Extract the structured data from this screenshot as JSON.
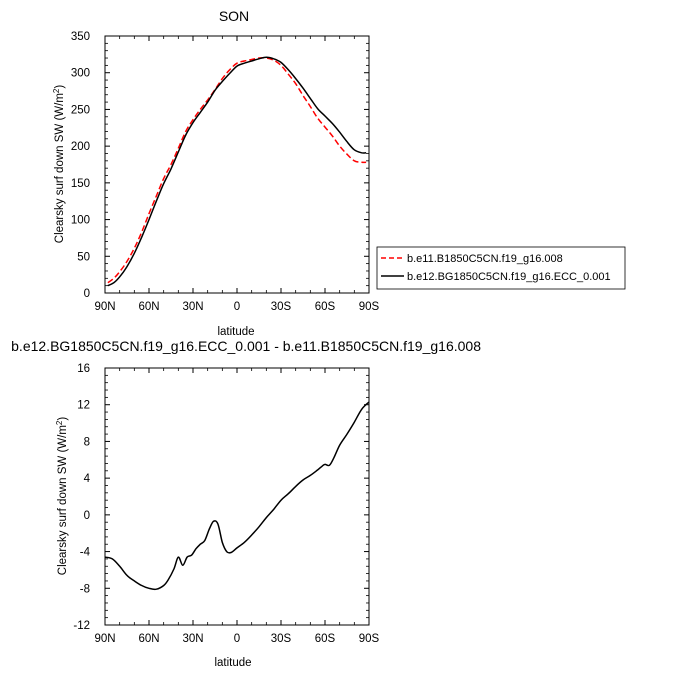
{
  "chart_data": [
    {
      "type": "line",
      "title": "SON",
      "xlabel": "latitude",
      "ylabel": "Clearsky surf down SW (W/m",
      "ylabel_sup": "2",
      "ylabel_tail": ")",
      "xlim": [
        90,
        -90
      ],
      "ylim": [
        0,
        350
      ],
      "xticks": [
        90,
        60,
        30,
        0,
        -30,
        -60,
        -90
      ],
      "xtick_labels": [
        "90N",
        "60N",
        "30N",
        "0",
        "30S",
        "60S",
        "90S"
      ],
      "yticks": [
        0,
        50,
        100,
        150,
        200,
        250,
        300,
        350
      ],
      "ytick_labels": [
        "0",
        "50",
        "100",
        "150",
        "200",
        "250",
        "300",
        "350"
      ],
      "legend_position": "right",
      "series": [
        {
          "name": "b.e11.B1850C5CN.f19_g16.008",
          "color": "#ff0000",
          "dash": "dashed",
          "x": [
            88,
            84,
            80,
            75,
            70,
            65,
            60,
            55,
            50,
            45,
            40,
            35,
            30,
            25,
            20,
            15,
            10,
            5,
            0,
            -5,
            -10,
            -15,
            -20,
            -25,
            -30,
            -35,
            -40,
            -45,
            -50,
            -55,
            -60,
            -65,
            -70,
            -75,
            -80,
            -85,
            -88
          ],
          "y": [
            14,
            20,
            29,
            43,
            61,
            83,
            108,
            132,
            156,
            175,
            197,
            220,
            236,
            250,
            263,
            277,
            292,
            304,
            313,
            316,
            318,
            320,
            320,
            317,
            310,
            298,
            285,
            269,
            254,
            238,
            226,
            214,
            200,
            189,
            180,
            178,
            178
          ]
        },
        {
          "name": "b.e12.BG1850C5CN.f19_g16.ECC_0.001",
          "color": "#000000",
          "dash": "solid",
          "x": [
            88,
            84,
            80,
            75,
            70,
            65,
            60,
            55,
            50,
            45,
            40,
            35,
            30,
            25,
            20,
            15,
            10,
            5,
            0,
            -5,
            -10,
            -15,
            -20,
            -25,
            -30,
            -35,
            -40,
            -45,
            -50,
            -55,
            -60,
            -65,
            -70,
            -75,
            -80,
            -85,
            -88
          ],
          "y": [
            10,
            14,
            22,
            36,
            54,
            76,
            100,
            125,
            149,
            169,
            192,
            215,
            232,
            246,
            260,
            276,
            288,
            299,
            309,
            313,
            316,
            319,
            321,
            319,
            314,
            304,
            292,
            279,
            265,
            251,
            241,
            231,
            219,
            206,
            195,
            191,
            191
          ]
        }
      ]
    },
    {
      "type": "line",
      "title": "b.e12.BG1850C5CN.f19_g16.ECC_0.001 - b.e11.B1850C5CN.f19_g16.008",
      "xlabel": "latitude",
      "ylabel": "Clearsky surf down SW (W/m",
      "ylabel_sup": "2",
      "ylabel_tail": ")",
      "xlim": [
        90,
        -90
      ],
      "ylim": [
        -12,
        16
      ],
      "xticks": [
        90,
        60,
        30,
        0,
        -30,
        -60,
        -90
      ],
      "xtick_labels": [
        "90N",
        "60N",
        "30N",
        "0",
        "30S",
        "60S",
        "90S"
      ],
      "yticks": [
        -12,
        -8,
        -4,
        0,
        4,
        8,
        12,
        16
      ],
      "ytick_labels": [
        "-12",
        "-8",
        "-4",
        "0",
        "4",
        "8",
        "12",
        "16"
      ],
      "series": [
        {
          "color": "#000000",
          "dash": "solid",
          "x": [
            90,
            85,
            80,
            75,
            70,
            65,
            60,
            55,
            50,
            47,
            43,
            40,
            37,
            34,
            31,
            28,
            25,
            22,
            19,
            16,
            13,
            10,
            7,
            4,
            0,
            -5,
            -10,
            -15,
            -20,
            -25,
            -30,
            -35,
            -40,
            -45,
            -50,
            -55,
            -58,
            -60,
            -63,
            -66,
            -70,
            -75,
            -80,
            -85,
            -90
          ],
          "y": [
            -4.6,
            -4.8,
            -5.6,
            -6.6,
            -7.2,
            -7.7,
            -8.0,
            -8.1,
            -7.7,
            -7.1,
            -5.9,
            -4.6,
            -5.5,
            -4.6,
            -4.4,
            -3.7,
            -3.2,
            -2.8,
            -1.6,
            -0.7,
            -1.0,
            -3.0,
            -4.0,
            -4.1,
            -3.6,
            -3.0,
            -2.2,
            -1.3,
            -0.3,
            0.6,
            1.6,
            2.3,
            3.1,
            3.8,
            4.3,
            4.9,
            5.3,
            5.5,
            5.4,
            6.2,
            7.6,
            8.8,
            10.1,
            11.5,
            12.3
          ]
        }
      ]
    }
  ]
}
